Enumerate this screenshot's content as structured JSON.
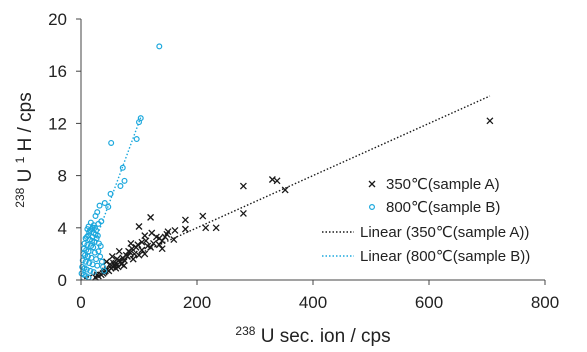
{
  "chart_data": {
    "type": "scatter",
    "xlabel": {
      "sup": "238",
      "text": "U sec. ion / cps"
    },
    "ylabel": {
      "sup1": "238",
      "mid": " U",
      "sup2": "1",
      "end": "H / cps"
    },
    "xlim": [
      0,
      800
    ],
    "ylim": [
      0,
      20
    ],
    "xticks": [
      "0",
      "200",
      "400",
      "600",
      "800"
    ],
    "yticks": [
      "0",
      "4",
      "8",
      "12",
      "16",
      "20"
    ],
    "grid": false,
    "legend_position": "right",
    "colors": {
      "sample_a": "#1a1a1a",
      "sample_b": "#1ca8dd"
    },
    "series": [
      {
        "name": "350℃(sample A)",
        "marker": "x",
        "points": [
          [
            705,
            12.2
          ],
          [
            280,
            7.2
          ],
          [
            330,
            7.7
          ],
          [
            338,
            7.6
          ],
          [
            352,
            6.9
          ],
          [
            280,
            5.1
          ],
          [
            210,
            4.9
          ],
          [
            180,
            4.6
          ],
          [
            215,
            4.0
          ],
          [
            233,
            4.0
          ],
          [
            120,
            4.8
          ],
          [
            100,
            4.1
          ],
          [
            148,
            3.5
          ],
          [
            145,
            3.3
          ],
          [
            180,
            3.9
          ],
          [
            162,
            3.8
          ],
          [
            110,
            3.4
          ],
          [
            122,
            3.6
          ],
          [
            135,
            3.2
          ],
          [
            105,
            2.9
          ],
          [
            95,
            2.5
          ],
          [
            140,
            3.0
          ],
          [
            115,
            2.6
          ],
          [
            125,
            2.8
          ],
          [
            88,
            2.4
          ],
          [
            82,
            2.2
          ],
          [
            105,
            2.3
          ],
          [
            92,
            2.0
          ],
          [
            78,
            1.9
          ],
          [
            72,
            1.7
          ],
          [
            65,
            1.5
          ],
          [
            60,
            1.3
          ],
          [
            58,
            1.1
          ],
          [
            55,
            1.0
          ],
          [
            52,
            0.9
          ],
          [
            50,
            1.2
          ],
          [
            68,
            1.4
          ],
          [
            62,
            1.6
          ],
          [
            75,
            1.5
          ],
          [
            80,
            1.8
          ],
          [
            85,
            2.1
          ],
          [
            120,
            2.5
          ],
          [
            110,
            2.0
          ],
          [
            135,
            2.7
          ],
          [
            100,
            1.9
          ],
          [
            90,
            1.6
          ],
          [
            45,
            0.8
          ],
          [
            42,
            0.7
          ],
          [
            40,
            0.6
          ],
          [
            38,
            0.5
          ],
          [
            35,
            0.4
          ],
          [
            30,
            0.3
          ],
          [
            28,
            0.4
          ],
          [
            25,
            0.2
          ],
          [
            60,
            0.9
          ],
          [
            70,
            1.2
          ],
          [
            64,
            1.0
          ],
          [
            48,
            0.7
          ],
          [
            56,
            1.3
          ],
          [
            74,
            1.1
          ],
          [
            160,
            3.1
          ],
          [
            150,
            3.7
          ],
          [
            130,
            3.3
          ],
          [
            98,
            2.7
          ],
          [
            66,
            2.2
          ],
          [
            54,
            1.8
          ],
          [
            44,
            1.4
          ],
          [
            86,
            2.8
          ],
          [
            112,
            3.0
          ],
          [
            140,
            2.4
          ]
        ]
      },
      {
        "name": "800℃(sample B)",
        "marker": "o",
        "points": [
          [
            135,
            17.9
          ],
          [
            103,
            12.4
          ],
          [
            100,
            12.1
          ],
          [
            52,
            10.5
          ],
          [
            96,
            10.8
          ],
          [
            72,
            8.6
          ],
          [
            75,
            7.6
          ],
          [
            68,
            7.2
          ],
          [
            51,
            6.6
          ],
          [
            41,
            5.9
          ],
          [
            32,
            5.7
          ],
          [
            47,
            5.6
          ],
          [
            28,
            5.2
          ],
          [
            25,
            4.9
          ],
          [
            35,
            4.5
          ],
          [
            30,
            4.3
          ],
          [
            22,
            4.2
          ],
          [
            20,
            4.0
          ],
          [
            18,
            3.9
          ],
          [
            16,
            3.8
          ],
          [
            14,
            3.7
          ],
          [
            22,
            3.6
          ],
          [
            25,
            3.5
          ],
          [
            12,
            3.4
          ],
          [
            10,
            3.3
          ],
          [
            8,
            3.2
          ],
          [
            15,
            3.1
          ],
          [
            19,
            3.0
          ],
          [
            23,
            2.9
          ],
          [
            6,
            2.8
          ],
          [
            11,
            2.7
          ],
          [
            17,
            2.6
          ],
          [
            21,
            2.5
          ],
          [
            5,
            2.4
          ],
          [
            9,
            2.3
          ],
          [
            13,
            2.2
          ],
          [
            24,
            2.1
          ],
          [
            4,
            2.0
          ],
          [
            7,
            1.9
          ],
          [
            12,
            1.8
          ],
          [
            18,
            1.7
          ],
          [
            26,
            1.6
          ],
          [
            3,
            1.5
          ],
          [
            8,
            1.4
          ],
          [
            14,
            1.3
          ],
          [
            20,
            1.2
          ],
          [
            28,
            1.1
          ],
          [
            2,
            1.0
          ],
          [
            6,
            0.9
          ],
          [
            10,
            0.8
          ],
          [
            16,
            0.7
          ],
          [
            22,
            0.6
          ],
          [
            1,
            0.5
          ],
          [
            5,
            0.4
          ],
          [
            9,
            0.3
          ],
          [
            13,
            0.2
          ],
          [
            30,
            2.2
          ],
          [
            33,
            1.8
          ],
          [
            36,
            1.4
          ],
          [
            38,
            1.0
          ],
          [
            40,
            0.7
          ],
          [
            27,
            3.2
          ],
          [
            31,
            2.8
          ],
          [
            34,
            2.6
          ],
          [
            29,
            3.4
          ],
          [
            26,
            3.8
          ],
          [
            17,
            4.4
          ],
          [
            13,
            4.1
          ],
          [
            11,
            3.9
          ],
          [
            24,
            4.0
          ],
          [
            20,
            3.3
          ]
        ]
      }
    ],
    "trendlines": [
      {
        "name": "Linear (350℃(sample A))",
        "type": "linear",
        "x_range": [
          0,
          705
        ],
        "slope": 0.02,
        "intercept": 0.0
      },
      {
        "name": "Linear (800℃(sample B))",
        "type": "linear",
        "x_range": [
          0,
          103
        ],
        "slope": 0.121,
        "intercept": 0.0
      }
    ]
  }
}
